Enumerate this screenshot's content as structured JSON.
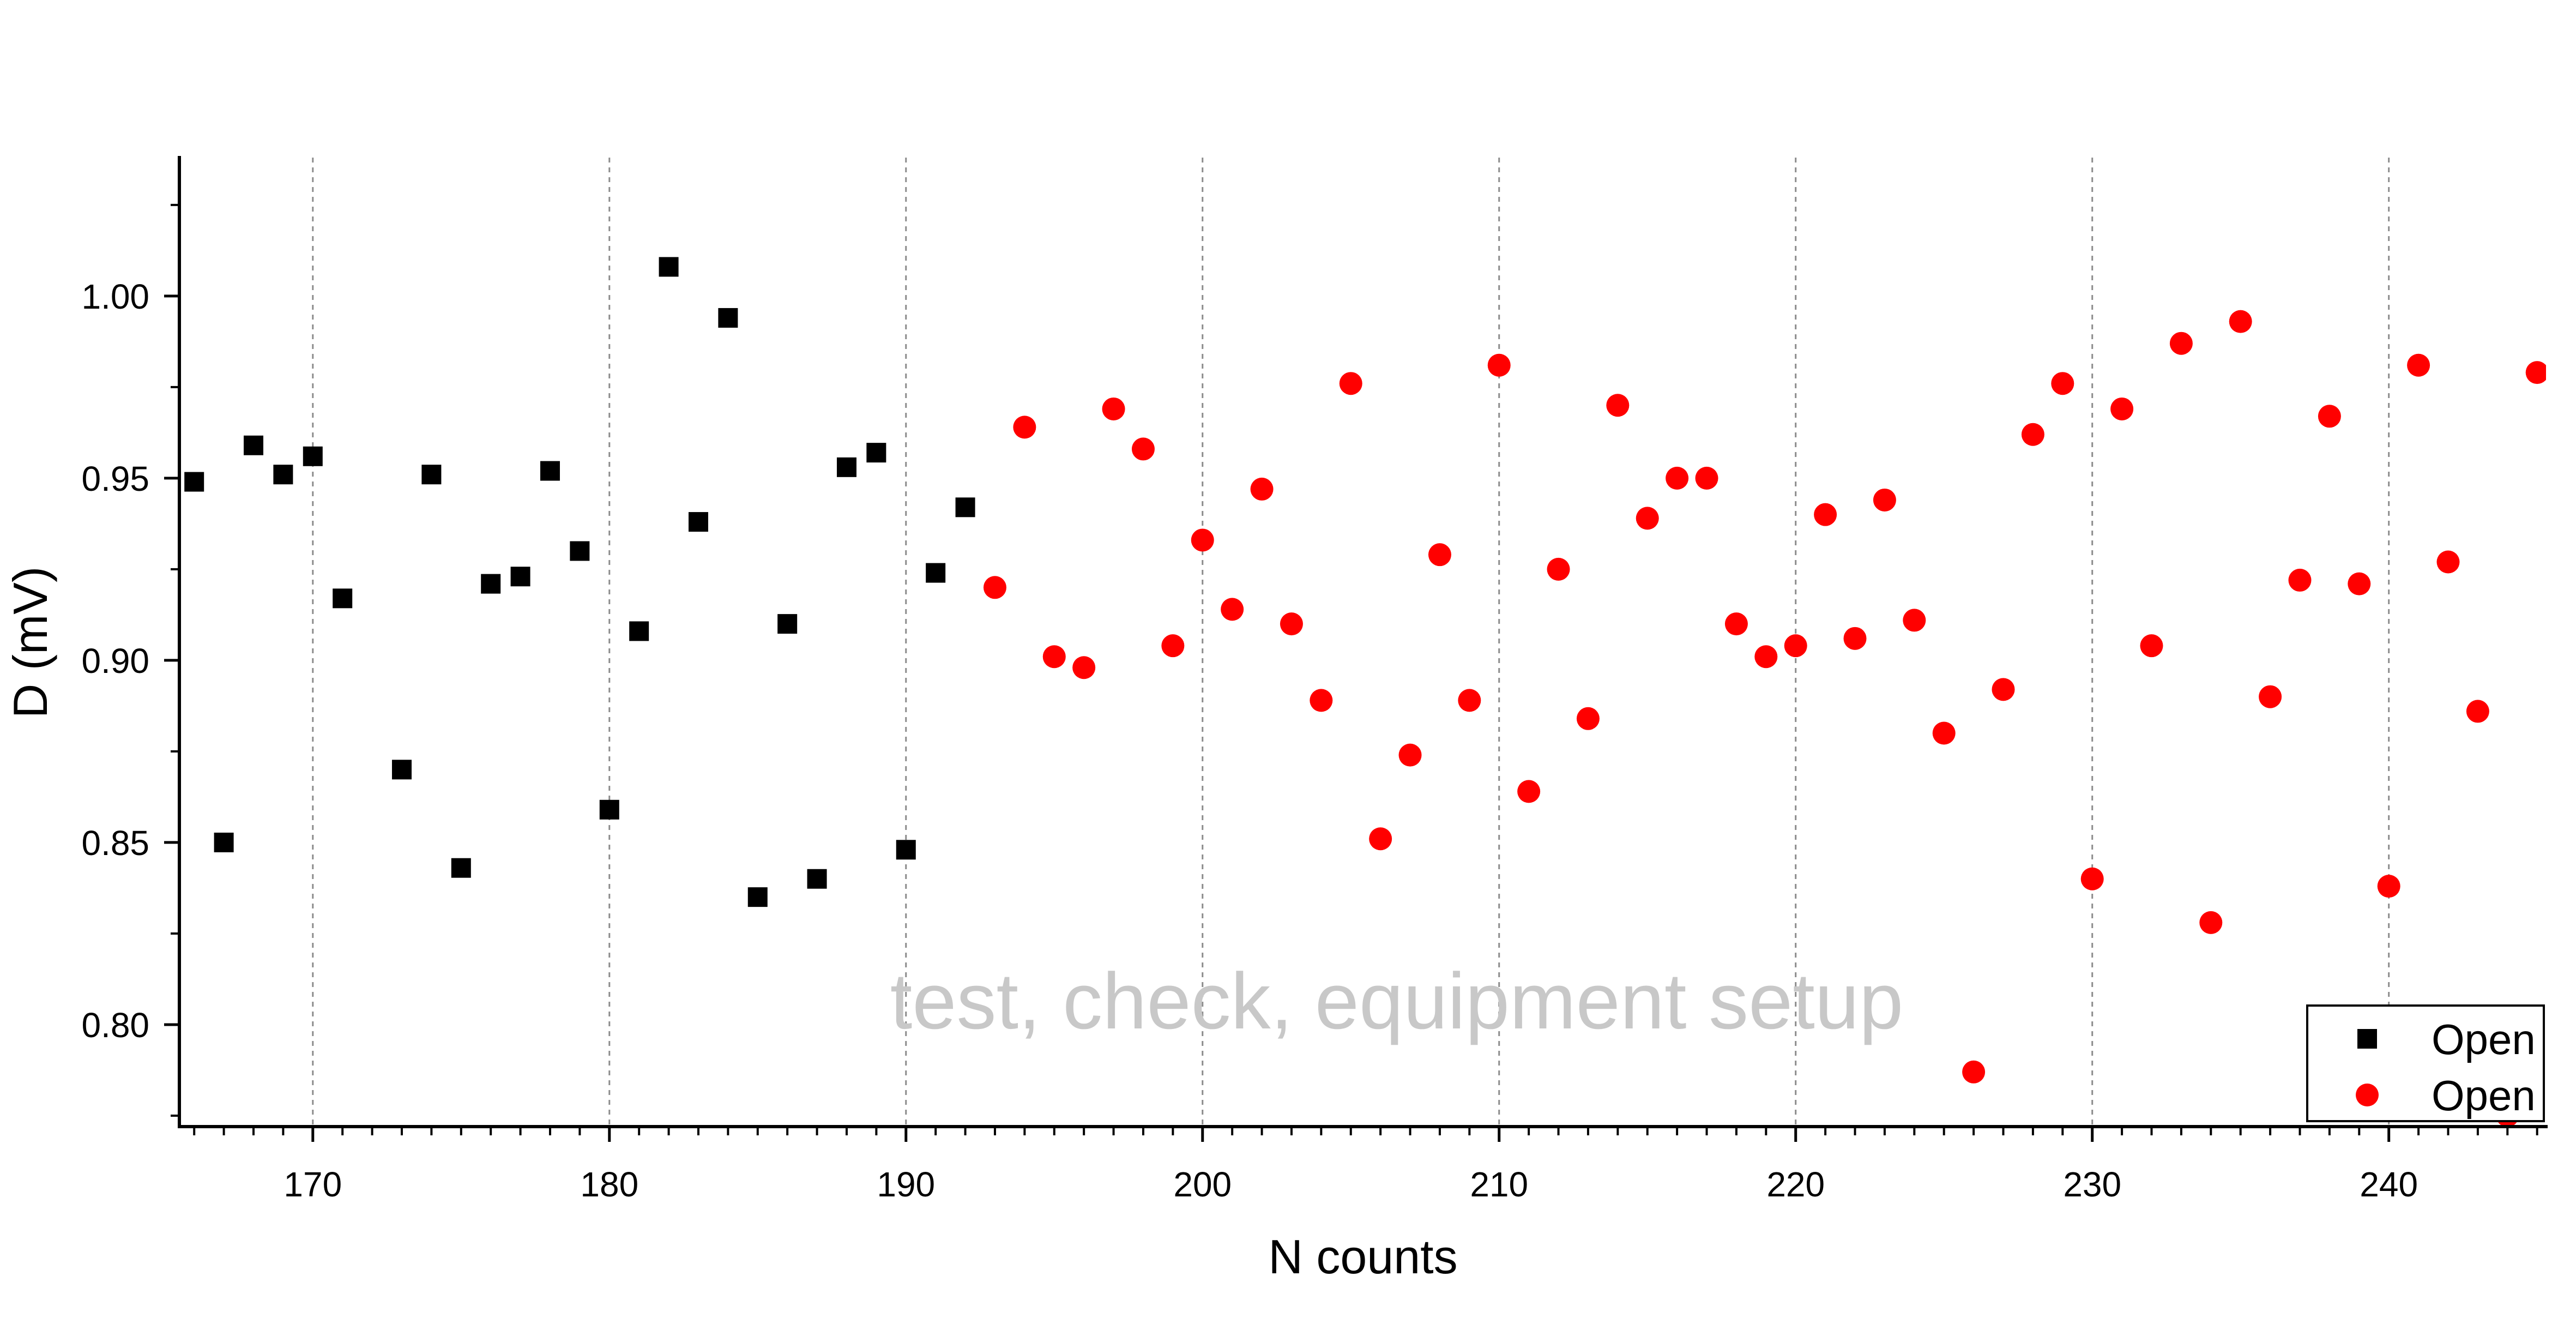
{
  "chart_data": {
    "type": "scatter",
    "xlabel": "N counts",
    "ylabel": "D (mV)",
    "xlim": [
      165.5,
      245.3
    ],
    "ylim": [
      0.772,
      1.038
    ],
    "xticks": [
      "170",
      "180",
      "190",
      "200",
      "210",
      "220",
      "230",
      "240"
    ],
    "yticks": [
      "0.80",
      "0.85",
      "0.90",
      "0.95",
      "1.00"
    ],
    "x_minor_step": 1,
    "y_minor_step": 0.025,
    "grid": {
      "x": true,
      "y": false,
      "style": "dashed"
    },
    "legend": {
      "position": "bottom-right"
    },
    "watermark": "test, check, equipment setup",
    "series": [
      {
        "name": "Open",
        "marker": "square",
        "color": "#000000",
        "x": [
          166,
          167,
          168,
          169,
          170,
          171,
          173,
          174,
          175,
          176,
          177,
          178,
          179,
          180,
          181,
          182,
          183,
          184,
          185,
          186,
          187,
          188,
          189,
          190,
          191,
          192
        ],
        "y": [
          0.949,
          0.85,
          0.959,
          0.951,
          0.956,
          0.917,
          0.87,
          0.951,
          0.843,
          0.921,
          0.923,
          0.952,
          0.93,
          0.859,
          0.908,
          1.008,
          0.938,
          0.994,
          0.835,
          0.91,
          0.84,
          0.953,
          0.957,
          0.848,
          0.924,
          0.942
        ]
      },
      {
        "name": "Open",
        "marker": "circle",
        "color": "#ff0000",
        "x": [
          193,
          194,
          195,
          196,
          197,
          198,
          199,
          200,
          201,
          202,
          203,
          204,
          205,
          206,
          207,
          208,
          209,
          210,
          211,
          212,
          213,
          214,
          215,
          216,
          217,
          218,
          219,
          220,
          221,
          222,
          223,
          224,
          225,
          226,
          227,
          228,
          229,
          230,
          231,
          232,
          233,
          234,
          235,
          236,
          237,
          238,
          239,
          240,
          241,
          242,
          243,
          244,
          245
        ],
        "y": [
          0.92,
          0.964,
          0.901,
          0.898,
          0.969,
          0.958,
          0.904,
          0.933,
          0.914,
          0.947,
          0.91,
          0.889,
          0.976,
          0.851,
          0.874,
          0.929,
          0.889,
          0.981,
          0.864,
          0.925,
          0.884,
          0.97,
          0.939,
          0.95,
          0.95,
          0.91,
          0.901,
          0.904,
          0.94,
          0.906,
          0.944,
          0.911,
          0.88,
          0.787,
          0.892,
          0.962,
          0.976,
          0.84,
          0.969,
          0.904,
          0.987,
          0.828,
          0.993,
          0.89,
          0.922,
          0.967,
          0.921,
          0.838,
          0.981,
          0.927,
          0.886,
          0.775,
          0.979
        ]
      }
    ]
  }
}
